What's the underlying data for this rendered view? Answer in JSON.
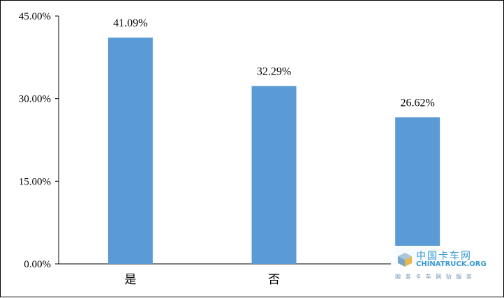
{
  "chart_data": {
    "type": "bar",
    "categories": [
      "是",
      "否",
      ""
    ],
    "values": [
      41.09,
      32.29,
      26.62
    ],
    "data_labels": [
      "41.09%",
      "32.29%",
      "26.62%"
    ],
    "yticks": [
      "0.00%",
      "15.00%",
      "30.00%",
      "45.00%"
    ],
    "ylim": [
      0,
      45
    ],
    "bar_color": "#5b9bd5",
    "grid": false
  },
  "watermark": {
    "name": "中国卡车网",
    "latin": "CHINATRUCK.ORG",
    "tagline": "国 务 卡 车 网 站 服 务"
  }
}
